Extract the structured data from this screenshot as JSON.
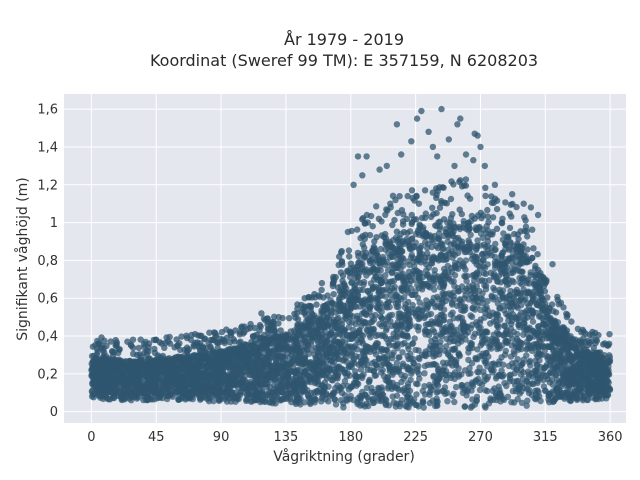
{
  "chart_data": {
    "type": "scatter",
    "title_lines": [
      "År 1979 - 2019",
      "Koordinat (Sweref 99 TM): E 357159, N 6208203"
    ],
    "xlabel": "Vågriktning (grader)",
    "ylabel": "Signifikant våghöjd (m)",
    "xlim": [
      -19,
      371
    ],
    "ylim": [
      -0.06,
      1.68
    ],
    "xticks": [
      0,
      45,
      90,
      135,
      180,
      225,
      270,
      315,
      360
    ],
    "xtick_labels": [
      "0",
      "45",
      "90",
      "135",
      "180",
      "225",
      "270",
      "315",
      "360"
    ],
    "yticks": [
      0,
      0.2,
      0.4,
      0.6,
      0.8,
      1.0,
      1.2,
      1.4,
      1.6
    ],
    "ytick_labels": [
      "0",
      "0,2",
      "0,4",
      "0,6",
      "0,8",
      "1",
      "1,2",
      "1,4",
      "1,6"
    ],
    "grid": true,
    "marker_color": "#2f566f",
    "background_color": "#e5e7ef",
    "envelope": {
      "x": [
        0,
        20,
        45,
        70,
        90,
        110,
        135,
        155,
        170,
        180,
        195,
        210,
        225,
        240,
        255,
        270,
        285,
        300,
        315,
        330,
        345,
        360
      ],
      "upper": [
        0.3,
        0.27,
        0.28,
        0.3,
        0.32,
        0.36,
        0.42,
        0.52,
        0.62,
        0.75,
        0.86,
        0.93,
        0.97,
        1.0,
        1.02,
        1.0,
        0.95,
        0.86,
        0.6,
        0.42,
        0.32,
        0.3
      ],
      "lower": [
        0.07,
        0.06,
        0.06,
        0.06,
        0.05,
        0.05,
        0.04,
        0.03,
        0.02,
        0.02,
        0.02,
        0.02,
        0.02,
        0.02,
        0.02,
        0.02,
        0.02,
        0.03,
        0.04,
        0.05,
        0.06,
        0.07
      ]
    },
    "extreme_points": [
      {
        "x": 185,
        "y": 1.35
      },
      {
        "x": 191,
        "y": 1.35
      },
      {
        "x": 200,
        "y": 1.28
      },
      {
        "x": 212,
        "y": 1.52
      },
      {
        "x": 215,
        "y": 1.36
      },
      {
        "x": 222,
        "y": 1.43
      },
      {
        "x": 226,
        "y": 1.55
      },
      {
        "x": 229,
        "y": 1.59
      },
      {
        "x": 234,
        "y": 1.48
      },
      {
        "x": 237,
        "y": 1.4
      },
      {
        "x": 243,
        "y": 1.6
      },
      {
        "x": 248,
        "y": 1.44
      },
      {
        "x": 254,
        "y": 1.52
      },
      {
        "x": 256,
        "y": 1.55
      },
      {
        "x": 260,
        "y": 1.36
      },
      {
        "x": 266,
        "y": 1.47
      },
      {
        "x": 268,
        "y": 1.46
      },
      {
        "x": 270,
        "y": 1.4
      },
      {
        "x": 273,
        "y": 1.3
      },
      {
        "x": 280,
        "y": 1.2
      },
      {
        "x": 182,
        "y": 1.2
      },
      {
        "x": 188,
        "y": 1.25
      },
      {
        "x": 205,
        "y": 1.3
      },
      {
        "x": 240,
        "y": 1.35
      },
      {
        "x": 252,
        "y": 1.3
      },
      {
        "x": 265,
        "y": 1.33
      },
      {
        "x": 292,
        "y": 1.15
      },
      {
        "x": 300,
        "y": 1.1
      },
      {
        "x": 305,
        "y": 1.08
      },
      {
        "x": 310,
        "y": 1.04
      },
      {
        "x": 320,
        "y": 0.78
      },
      {
        "x": 330,
        "y": 0.5
      },
      {
        "x": 340,
        "y": 0.42
      },
      {
        "x": 350,
        "y": 0.38
      },
      {
        "x": 358,
        "y": 0.35
      },
      {
        "x": 5,
        "y": 0.36
      },
      {
        "x": 25,
        "y": 0.37
      },
      {
        "x": 40,
        "y": 0.36
      },
      {
        "x": 60,
        "y": 0.35
      },
      {
        "x": 72,
        "y": 0.41
      },
      {
        "x": 85,
        "y": 0.38
      },
      {
        "x": 100,
        "y": 0.43
      },
      {
        "x": 118,
        "y": 0.52
      },
      {
        "x": 130,
        "y": 0.5
      },
      {
        "x": 148,
        "y": 0.6
      },
      {
        "x": 160,
        "y": 0.68
      },
      {
        "x": 172,
        "y": 0.82
      },
      {
        "x": 178,
        "y": 0.95
      }
    ]
  }
}
